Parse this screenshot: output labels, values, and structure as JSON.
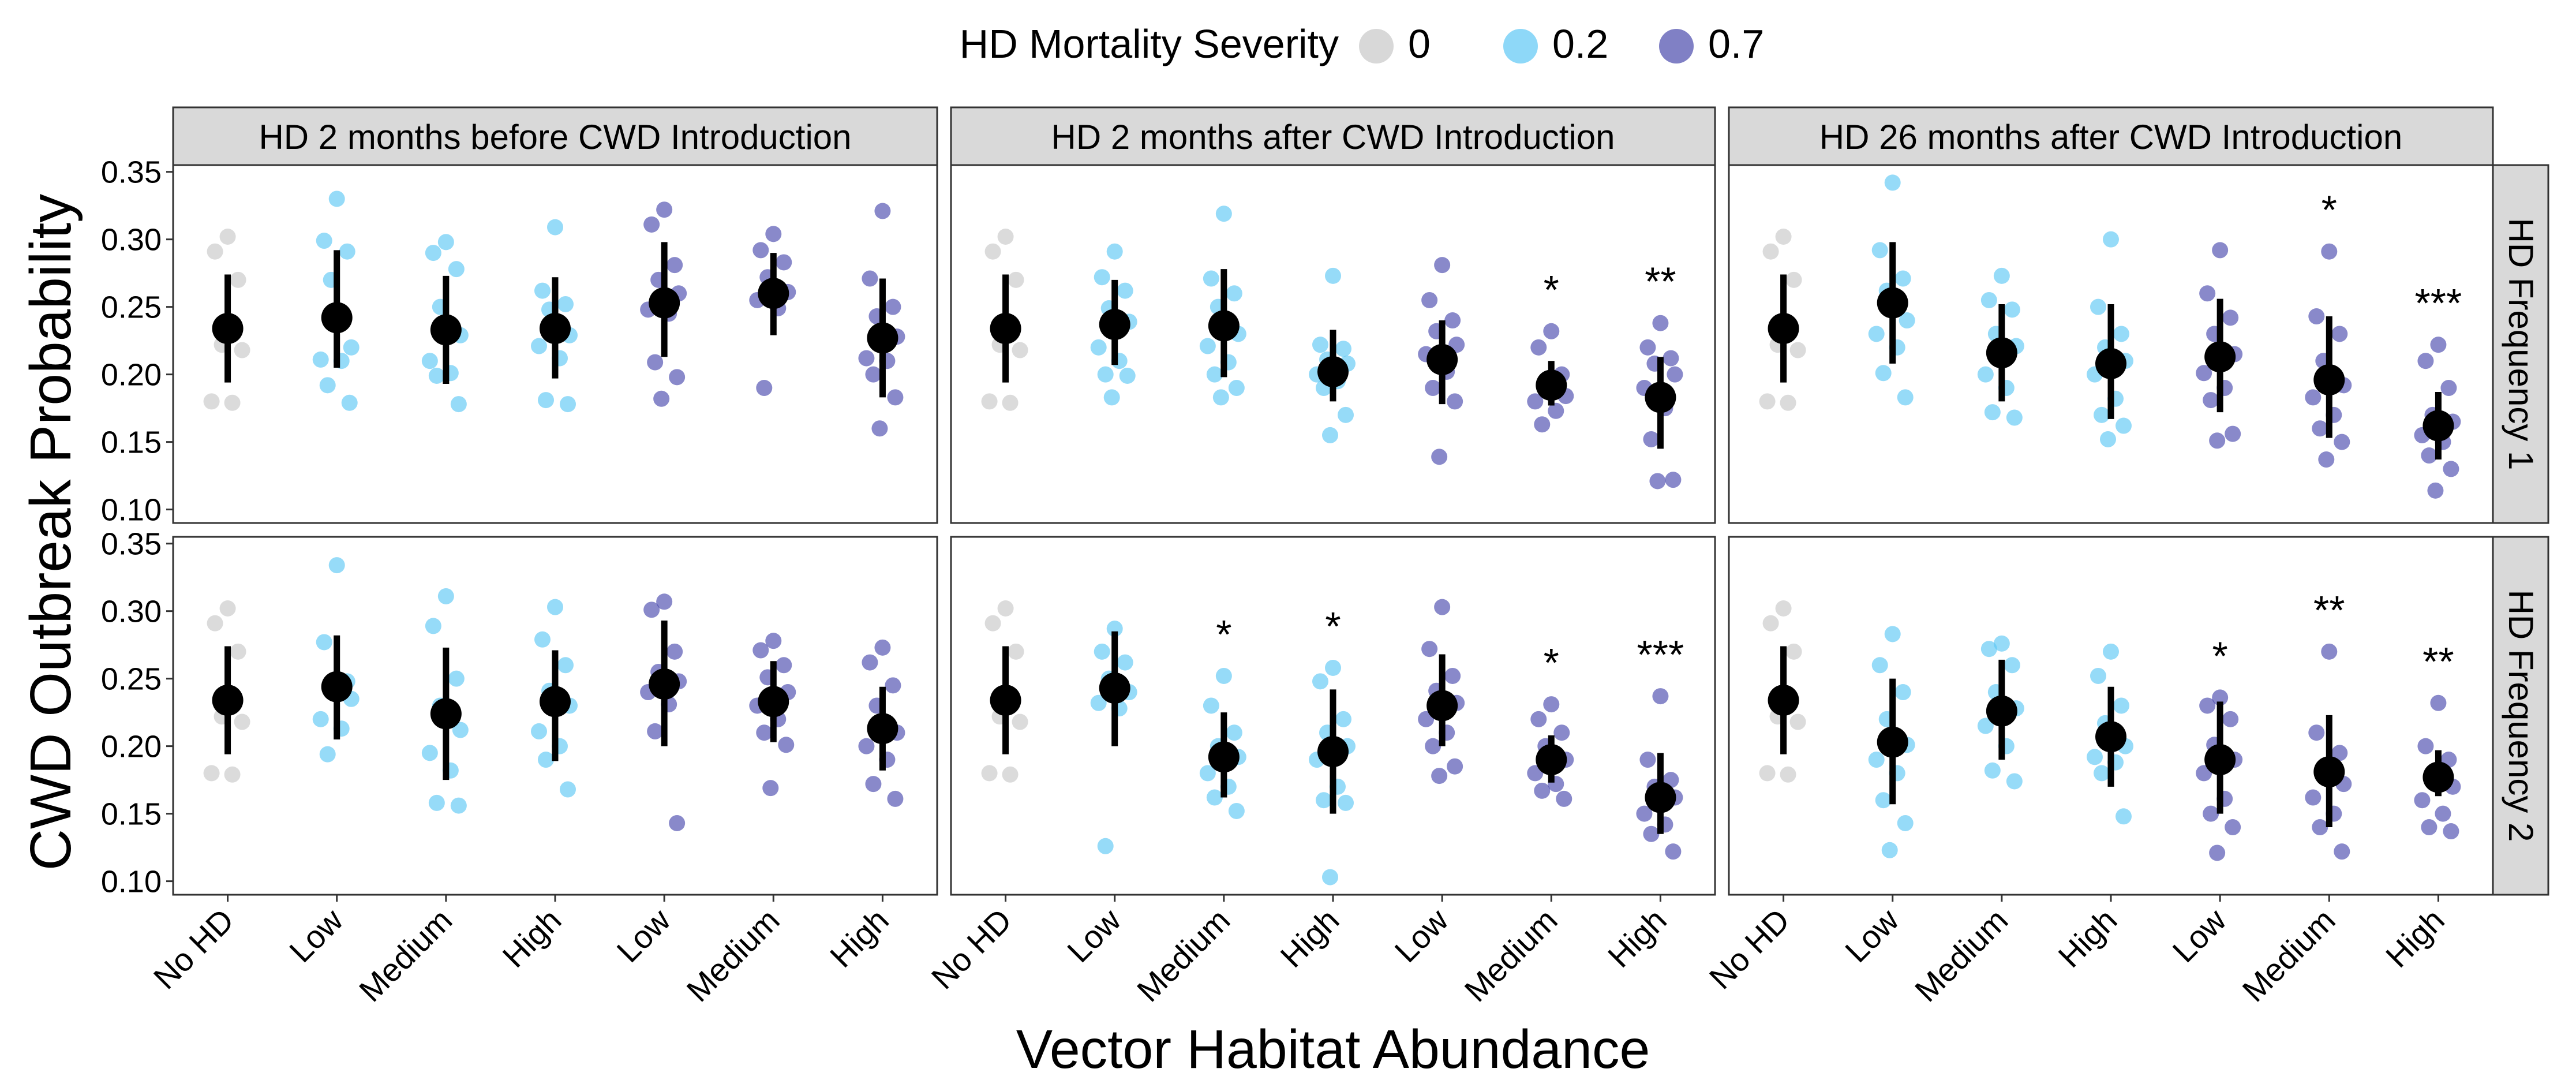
{
  "chart_data": {
    "type": "scatter",
    "title": "",
    "xlabel": "Vector Habitat Abundance",
    "ylabel": "CWD Outbreak Probability",
    "ylim": [
      0.09,
      0.355
    ],
    "yticks": [
      0.1,
      0.15,
      0.2,
      0.25,
      0.3,
      0.35
    ],
    "ytick_labels": [
      "0.10",
      "0.15",
      "0.20",
      "0.25",
      "0.30",
      "0.35"
    ],
    "categories": [
      "No HD",
      "Low",
      "Medium",
      "High",
      "Low",
      "Medium",
      "High"
    ],
    "legend": {
      "title": "HD Mortality Severity",
      "position": "top",
      "entries": [
        {
          "label": "0",
          "color": "#c8c8c8"
        },
        {
          "label": "0.2",
          "color": "#5ec8f5"
        },
        {
          "label": "0.7",
          "color": "#4a4aad"
        }
      ]
    },
    "column_facets": [
      "HD 2 months before CWD Introduction",
      "HD 2 months after CWD Introduction",
      "HD 26 months after CWD Introduction"
    ],
    "row_facets": [
      "HD Frequency 1",
      "HD Frequency 2"
    ],
    "category_severity": [
      0,
      1,
      1,
      1,
      2,
      2,
      2
    ],
    "panels": [
      {
        "row": 0,
        "col": 0,
        "means": [
          0.234,
          0.242,
          0.233,
          0.234,
          0.253,
          0.26,
          0.227
        ],
        "lower": [
          0.194,
          0.205,
          0.193,
          0.197,
          0.213,
          0.229,
          0.183
        ],
        "upper": [
          0.274,
          0.292,
          0.273,
          0.272,
          0.298,
          0.29,
          0.271
        ],
        "points": [
          [
            0.302,
            0.291,
            0.27,
            0.222,
            0.218,
            0.18,
            0.179
          ],
          [
            0.33,
            0.299,
            0.291,
            0.27,
            0.22,
            0.211,
            0.21,
            0.192,
            0.179
          ],
          [
            0.298,
            0.29,
            0.278,
            0.25,
            0.229,
            0.21,
            0.201,
            0.199,
            0.178
          ],
          [
            0.309,
            0.262,
            0.252,
            0.248,
            0.229,
            0.221,
            0.212,
            0.181,
            0.178
          ],
          [
            0.322,
            0.311,
            0.281,
            0.27,
            0.26,
            0.248,
            0.245,
            0.209,
            0.198,
            0.182
          ],
          [
            0.304,
            0.292,
            0.283,
            0.272,
            0.261,
            0.255,
            0.249,
            0.19
          ],
          [
            0.321,
            0.271,
            0.25,
            0.243,
            0.228,
            0.212,
            0.21,
            0.2,
            0.183,
            0.16
          ]
        ],
        "stars": [
          "",
          "",
          "",
          "",
          "",
          "",
          ""
        ]
      },
      {
        "row": 0,
        "col": 1,
        "means": [
          0.234,
          0.237,
          0.236,
          0.202,
          0.211,
          0.192,
          0.183
        ],
        "lower": [
          0.194,
          0.207,
          0.198,
          0.18,
          0.178,
          0.177,
          0.145
        ],
        "upper": [
          0.274,
          0.27,
          0.278,
          0.233,
          0.24,
          0.21,
          0.213
        ],
        "points": [
          [
            0.302,
            0.291,
            0.27,
            0.222,
            0.218,
            0.18,
            0.179
          ],
          [
            0.291,
            0.272,
            0.262,
            0.249,
            0.239,
            0.22,
            0.21,
            0.2,
            0.199,
            0.183
          ],
          [
            0.319,
            0.271,
            0.26,
            0.25,
            0.23,
            0.221,
            0.209,
            0.2,
            0.19,
            0.183
          ],
          [
            0.273,
            0.222,
            0.219,
            0.211,
            0.208,
            0.2,
            0.195,
            0.19,
            0.17,
            0.155
          ],
          [
            0.281,
            0.255,
            0.24,
            0.232,
            0.222,
            0.215,
            0.202,
            0.19,
            0.18,
            0.139
          ],
          [
            0.232,
            0.22,
            0.2,
            0.19,
            0.184,
            0.18,
            0.173,
            0.163
          ],
          [
            0.238,
            0.22,
            0.212,
            0.208,
            0.2,
            0.19,
            0.175,
            0.152,
            0.122,
            0.121
          ]
        ],
        "stars": [
          "",
          "",
          "",
          "",
          "",
          "*",
          "**"
        ]
      },
      {
        "row": 0,
        "col": 2,
        "means": [
          0.234,
          0.253,
          0.216,
          0.208,
          0.213,
          0.196,
          0.162
        ],
        "lower": [
          0.194,
          0.208,
          0.18,
          0.167,
          0.172,
          0.153,
          0.137
        ],
        "upper": [
          0.274,
          0.298,
          0.252,
          0.252,
          0.256,
          0.243,
          0.187
        ],
        "points": [
          [
            0.302,
            0.291,
            0.27,
            0.222,
            0.218,
            0.18,
            0.179
          ],
          [
            0.342,
            0.292,
            0.271,
            0.262,
            0.24,
            0.23,
            0.22,
            0.201,
            0.183
          ],
          [
            0.273,
            0.255,
            0.248,
            0.23,
            0.221,
            0.2,
            0.19,
            0.172,
            0.168
          ],
          [
            0.3,
            0.25,
            0.23,
            0.22,
            0.21,
            0.2,
            0.182,
            0.17,
            0.162,
            0.152
          ],
          [
            0.292,
            0.26,
            0.242,
            0.23,
            0.215,
            0.201,
            0.19,
            0.181,
            0.156,
            0.151
          ],
          [
            0.291,
            0.243,
            0.23,
            0.21,
            0.192,
            0.183,
            0.17,
            0.16,
            0.15,
            0.137
          ],
          [
            0.222,
            0.21,
            0.19,
            0.17,
            0.165,
            0.155,
            0.15,
            0.14,
            0.13,
            0.114
          ]
        ],
        "stars": [
          "",
          "",
          "",
          "",
          "",
          "*",
          "***"
        ]
      },
      {
        "row": 1,
        "col": 0,
        "means": [
          0.234,
          0.244,
          0.224,
          0.233,
          0.246,
          0.233,
          0.213
        ],
        "lower": [
          0.194,
          0.205,
          0.175,
          0.189,
          0.2,
          0.203,
          0.182
        ],
        "upper": [
          0.274,
          0.282,
          0.273,
          0.271,
          0.293,
          0.263,
          0.244
        ],
        "points": [
          [
            0.302,
            0.291,
            0.27,
            0.222,
            0.218,
            0.18,
            0.179
          ],
          [
            0.334,
            0.277,
            0.248,
            0.241,
            0.235,
            0.22,
            0.213,
            0.194
          ],
          [
            0.311,
            0.289,
            0.25,
            0.23,
            0.212,
            0.195,
            0.182,
            0.158,
            0.156
          ],
          [
            0.303,
            0.279,
            0.26,
            0.241,
            0.23,
            0.211,
            0.2,
            0.19,
            0.168
          ],
          [
            0.307,
            0.301,
            0.27,
            0.255,
            0.248,
            0.24,
            0.231,
            0.211,
            0.143
          ],
          [
            0.278,
            0.271,
            0.26,
            0.251,
            0.24,
            0.23,
            0.22,
            0.21,
            0.201,
            0.169
          ],
          [
            0.273,
            0.262,
            0.245,
            0.23,
            0.21,
            0.2,
            0.19,
            0.172,
            0.161
          ]
        ],
        "stars": [
          "",
          "",
          "",
          "",
          "",
          "",
          ""
        ]
      },
      {
        "row": 1,
        "col": 1,
        "means": [
          0.234,
          0.243,
          0.192,
          0.196,
          0.23,
          0.19,
          0.162
        ],
        "lower": [
          0.194,
          0.2,
          0.162,
          0.15,
          0.2,
          0.173,
          0.135
        ],
        "upper": [
          0.274,
          0.285,
          0.225,
          0.242,
          0.268,
          0.208,
          0.195
        ],
        "points": [
          [
            0.302,
            0.291,
            0.27,
            0.222,
            0.218,
            0.18,
            0.179
          ],
          [
            0.287,
            0.27,
            0.262,
            0.25,
            0.24,
            0.232,
            0.228,
            0.126
          ],
          [
            0.252,
            0.23,
            0.21,
            0.2,
            0.192,
            0.18,
            0.17,
            0.162,
            0.152
          ],
          [
            0.258,
            0.248,
            0.22,
            0.21,
            0.2,
            0.19,
            0.17,
            0.16,
            0.158,
            0.103
          ],
          [
            0.303,
            0.272,
            0.252,
            0.241,
            0.232,
            0.22,
            0.21,
            0.2,
            0.185,
            0.178
          ],
          [
            0.231,
            0.22,
            0.21,
            0.2,
            0.19,
            0.18,
            0.172,
            0.167,
            0.161
          ],
          [
            0.237,
            0.19,
            0.175,
            0.17,
            0.162,
            0.15,
            0.142,
            0.135,
            0.122
          ]
        ],
        "stars": [
          "",
          "",
          "*",
          "*",
          "",
          "*",
          "***"
        ]
      },
      {
        "row": 1,
        "col": 2,
        "means": [
          0.234,
          0.203,
          0.226,
          0.207,
          0.19,
          0.181,
          0.177
        ],
        "lower": [
          0.194,
          0.157,
          0.19,
          0.17,
          0.15,
          0.14,
          0.163
        ],
        "upper": [
          0.274,
          0.25,
          0.264,
          0.244,
          0.233,
          0.223,
          0.197
        ],
        "points": [
          [
            0.302,
            0.291,
            0.27,
            0.222,
            0.218,
            0.18,
            0.179
          ],
          [
            0.283,
            0.26,
            0.24,
            0.22,
            0.201,
            0.19,
            0.18,
            0.16,
            0.143,
            0.123
          ],
          [
            0.276,
            0.272,
            0.26,
            0.24,
            0.228,
            0.215,
            0.2,
            0.182,
            0.174
          ],
          [
            0.27,
            0.252,
            0.23,
            0.217,
            0.2,
            0.192,
            0.188,
            0.18,
            0.148
          ],
          [
            0.236,
            0.23,
            0.22,
            0.201,
            0.19,
            0.18,
            0.161,
            0.15,
            0.14,
            0.121
          ],
          [
            0.27,
            0.21,
            0.195,
            0.183,
            0.172,
            0.162,
            0.15,
            0.14,
            0.122
          ],
          [
            0.232,
            0.2,
            0.19,
            0.18,
            0.17,
            0.16,
            0.15,
            0.14,
            0.137
          ]
        ],
        "stars": [
          "",
          "",
          "",
          "",
          "*",
          "**",
          "**"
        ]
      }
    ]
  }
}
